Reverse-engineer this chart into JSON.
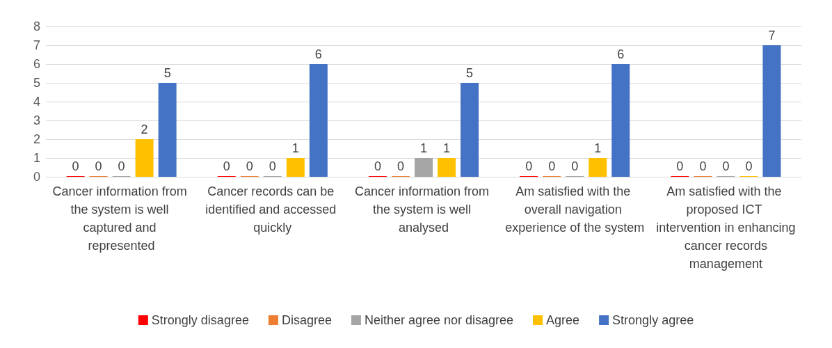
{
  "chart_data": {
    "type": "bar",
    "categories": [
      "Cancer information from the system is well captured and represented",
      "Cancer records can be identified and accessed quickly",
      "Cancer information from the system is well analysed",
      "Am satisfied with the overall navigation experience of the system",
      "Am satisfied with the proposed ICT intervention in enhancing cancer records management"
    ],
    "series": [
      {
        "name": "Strongly disagree",
        "color": "#ff0000",
        "values": [
          0,
          0,
          0,
          0,
          0
        ]
      },
      {
        "name": "Disagree",
        "color": "#ed7d31",
        "values": [
          0,
          0,
          0,
          0,
          0
        ]
      },
      {
        "name": "Neither agree nor disagree",
        "color": "#a5a5a5",
        "values": [
          0,
          0,
          1,
          0,
          0
        ]
      },
      {
        "name": "Agree",
        "color": "#ffc000",
        "values": [
          2,
          1,
          1,
          1,
          0
        ]
      },
      {
        "name": "Strongly agree",
        "color": "#4472c4",
        "values": [
          5,
          6,
          5,
          6,
          7
        ]
      }
    ],
    "ylim": [
      0,
      8
    ],
    "yticks": [
      0,
      1,
      2,
      3,
      4,
      5,
      6,
      7,
      8
    ],
    "grid": "y",
    "legend": "bottom",
    "data_labels": true
  }
}
